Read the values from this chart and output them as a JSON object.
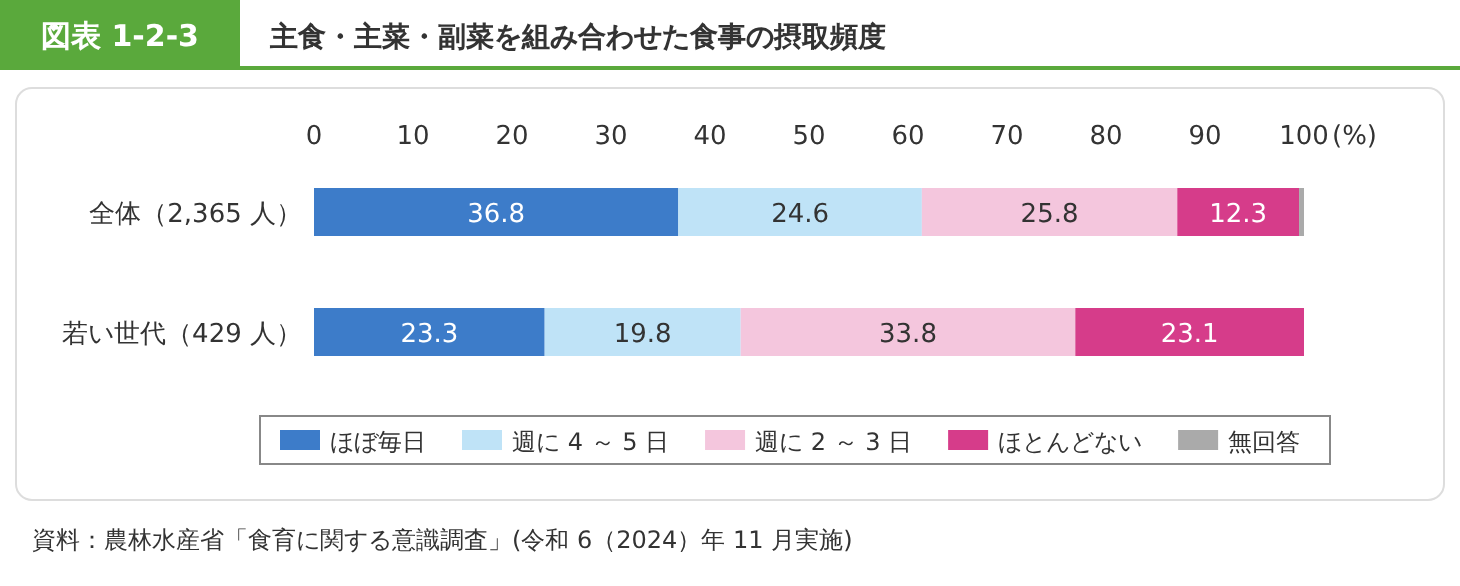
{
  "chart_data": {
    "type": "bar",
    "orientation": "horizontal",
    "stacked": true,
    "subtitle": "図表 1-2-3",
    "title": "主食・主菜・副菜を組み合わせた食事の摂取頻度",
    "categories": [
      "全体（2,365 人）",
      "若い世代（429 人）"
    ],
    "series": [
      {
        "name": "ほぼ毎日",
        "color": "#3d7cc9",
        "values": [
          36.8,
          23.3
        ],
        "value_labels": [
          "36.8",
          "23.3"
        ]
      },
      {
        "name": "週に 4 ～ 5 日",
        "color": "#bfe3f7",
        "values": [
          24.6,
          19.8
        ],
        "value_labels": [
          "24.6",
          "19.8"
        ]
      },
      {
        "name": "週に 2 ～ 3 日",
        "color": "#f4c6dd",
        "values": [
          25.8,
          33.8
        ],
        "value_labels": [
          "25.8",
          "33.8"
        ]
      },
      {
        "name": "ほとんどない",
        "color": "#d63c8a",
        "values": [
          12.3,
          23.1
        ],
        "value_labels": [
          "12.3",
          "23.1"
        ]
      },
      {
        "name": "無回答",
        "color": "#aaaaaa",
        "values": [
          0.5,
          null
        ],
        "value_labels": [
          null,
          null
        ]
      }
    ],
    "xlim": [
      0,
      100
    ],
    "xticks": [
      0,
      10,
      20,
      30,
      40,
      50,
      60,
      70,
      80,
      90,
      100
    ],
    "xlabel": "(%)",
    "legend": "bottom",
    "annotations": [
      "資料：農林水産省「食育に関する意識調査」(令和 6（2024）年 11 月実施)"
    ]
  }
}
